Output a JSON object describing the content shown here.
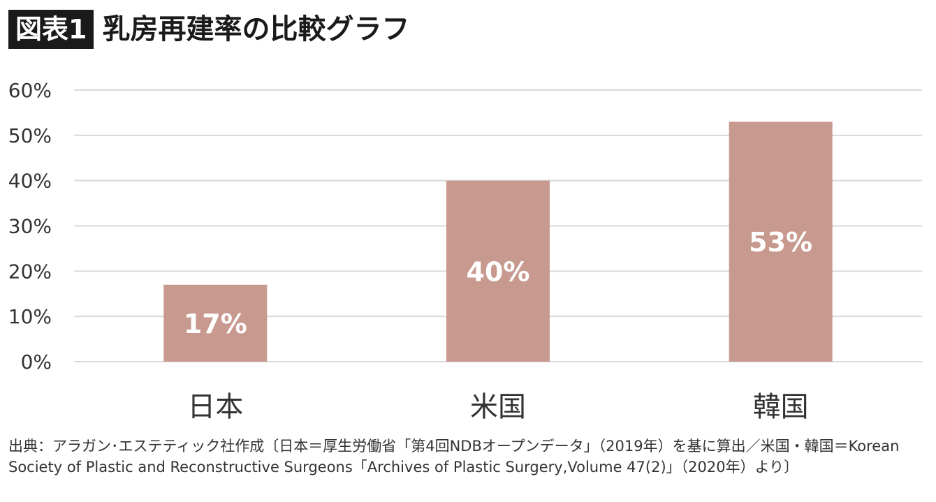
{
  "header": {
    "figure_label": "図表1",
    "title": "乳房再建率の比較グラフ"
  },
  "chart_data": {
    "type": "bar",
    "categories": [
      "日本",
      "米国",
      "韓国"
    ],
    "values": [
      17,
      40,
      53
    ],
    "data_labels": [
      "17%",
      "40%",
      "53%"
    ],
    "yticks": [
      "0%",
      "10%",
      "20%",
      "30%",
      "40%",
      "50%",
      "60%"
    ],
    "ylim": [
      0,
      60
    ],
    "grid": true,
    "bar_color": "#c8998f",
    "grid_color": "#d9d9d9",
    "label_color": "#ffffff"
  },
  "source": {
    "text": "出典：アラガン･エステティック社作成〔日本＝厚生労働省「第4回NDBオープンデータ」（2019年）を基に算出／米国・韓国＝Korean Society of Plastic and Reconstructive Surgeons「Archives of Plastic Surgery,Volume 47(2)」（2020年）より〕"
  }
}
